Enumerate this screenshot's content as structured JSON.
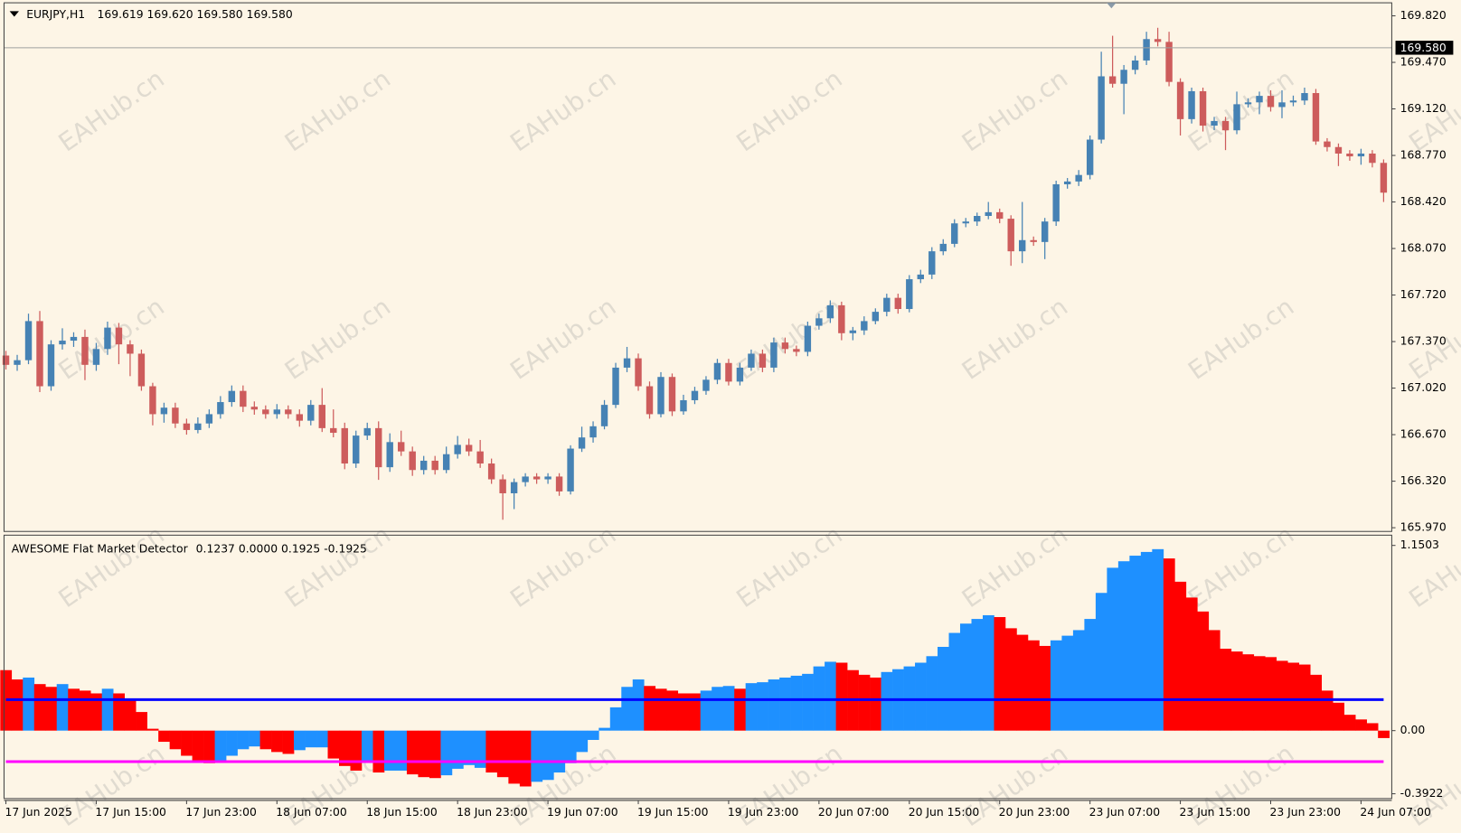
{
  "chart_data": [
    {
      "type": "candlestick",
      "title": "EURJPY,H1",
      "subtitle": "169.619 169.620 169.580 169.580",
      "watermark": "EAHub.cn",
      "up_color": "#4682b4",
      "down_color": "#cd5c5c",
      "ylim": [
        165.942,
        169.918
      ],
      "yticks": [
        {
          "value": 169.82,
          "label": "169.820"
        },
        {
          "value": 169.47,
          "label": "169.470"
        },
        {
          "value": 169.12,
          "label": "169.120"
        },
        {
          "value": 168.77,
          "label": "168.770"
        },
        {
          "value": 168.42,
          "label": "168.420"
        },
        {
          "value": 168.07,
          "label": "168.070"
        },
        {
          "value": 167.72,
          "label": "167.720"
        },
        {
          "value": 167.37,
          "label": "167.370"
        },
        {
          "value": 167.02,
          "label": "167.020"
        },
        {
          "value": 166.67,
          "label": "166.670"
        },
        {
          "value": 166.32,
          "label": "166.320"
        },
        {
          "value": 165.97,
          "label": "165.970"
        }
      ],
      "price_line": {
        "value": 169.58,
        "label": "169.580"
      },
      "open": [
        167.265,
        167.195,
        167.23,
        167.524,
        167.034,
        167.349,
        167.377,
        167.405,
        167.195,
        167.314,
        167.475,
        167.349,
        167.279,
        167.034,
        166.824,
        166.873,
        166.754,
        166.705,
        166.754,
        166.824,
        166.915,
        166.999,
        166.88,
        166.859,
        166.824,
        166.859,
        166.824,
        166.775,
        166.894,
        166.719,
        166.719,
        166.453,
        166.663,
        166.719,
        166.425,
        166.614,
        166.544,
        166.404,
        166.474,
        166.404,
        166.523,
        166.593,
        166.544,
        166.453,
        166.334,
        166.229,
        166.313,
        166.355,
        166.334,
        166.355,
        166.243,
        166.565,
        166.649,
        166.733,
        166.894,
        167.174,
        167.244,
        167.034,
        166.824,
        167.104,
        166.845,
        166.929,
        166.999,
        167.083,
        167.209,
        167.069,
        167.174,
        167.279,
        167.174,
        167.363,
        167.314,
        167.293,
        167.489,
        167.545,
        167.643,
        167.433,
        167.454,
        167.524,
        167.594,
        167.699,
        167.615,
        167.839,
        167.874,
        168.049,
        168.105,
        168.259,
        168.273,
        168.315,
        168.343,
        168.294,
        168.049,
        168.133,
        168.119,
        168.273,
        168.553,
        168.574,
        168.623,
        168.889,
        169.365,
        169.309,
        169.414,
        169.484,
        169.645,
        169.624,
        169.323,
        169.043,
        169.253,
        168.994,
        169.029,
        168.959,
        169.155,
        169.169,
        169.218,
        169.134,
        169.169,
        169.183,
        169.239,
        168.875,
        168.833,
        168.784,
        168.763,
        168.784,
        168.714
      ],
      "high": [
        167.3,
        167.27,
        167.58,
        167.6,
        167.38,
        167.47,
        167.44,
        167.46,
        167.36,
        167.52,
        167.51,
        167.38,
        167.31,
        167.06,
        166.91,
        166.91,
        166.79,
        166.8,
        166.86,
        166.96,
        167.04,
        167.04,
        166.92,
        166.89,
        166.9,
        166.89,
        166.86,
        166.93,
        167.02,
        166.86,
        166.76,
        166.7,
        166.76,
        166.77,
        166.68,
        166.7,
        166.58,
        166.51,
        166.51,
        166.58,
        166.66,
        166.64,
        166.63,
        166.49,
        166.37,
        166.34,
        166.38,
        166.38,
        166.38,
        166.38,
        166.59,
        166.73,
        166.77,
        166.93,
        167.21,
        167.33,
        167.28,
        167.07,
        167.14,
        167.13,
        166.97,
        167.03,
        167.11,
        167.24,
        167.24,
        167.21,
        167.31,
        167.31,
        167.4,
        167.4,
        167.34,
        167.52,
        167.58,
        167.68,
        167.67,
        167.48,
        167.56,
        167.62,
        167.73,
        167.73,
        167.87,
        167.91,
        168.08,
        168.14,
        168.29,
        168.3,
        168.34,
        168.42,
        168.37,
        168.32,
        168.42,
        168.16,
        168.3,
        168.58,
        168.6,
        168.66,
        168.92,
        169.55,
        169.67,
        169.45,
        169.52,
        169.7,
        169.73,
        169.7,
        169.35,
        169.28,
        169.28,
        169.06,
        169.06,
        169.25,
        169.2,
        169.25,
        169.26,
        169.26,
        169.22,
        169.28,
        169.27,
        168.9,
        168.86,
        168.81,
        168.82,
        168.81,
        168.74
      ],
      "low": [
        167.16,
        167.15,
        167.2,
        166.99,
        167.0,
        167.31,
        167.33,
        167.08,
        167.15,
        167.27,
        167.2,
        167.11,
        167.0,
        166.74,
        166.76,
        166.72,
        166.67,
        166.68,
        166.72,
        166.79,
        166.88,
        166.84,
        166.82,
        166.79,
        166.79,
        166.79,
        166.73,
        166.74,
        166.69,
        166.65,
        166.41,
        166.42,
        166.63,
        166.33,
        166.39,
        166.51,
        166.36,
        166.37,
        166.37,
        166.38,
        166.49,
        166.51,
        166.42,
        166.3,
        166.03,
        166.11,
        166.28,
        166.3,
        166.3,
        166.21,
        166.22,
        166.54,
        166.61,
        166.71,
        166.87,
        167.14,
        167.0,
        166.79,
        166.8,
        166.81,
        166.82,
        166.9,
        166.97,
        167.05,
        167.04,
        167.04,
        167.15,
        167.14,
        167.14,
        167.28,
        167.26,
        167.26,
        167.46,
        167.51,
        167.38,
        167.38,
        167.42,
        167.5,
        167.56,
        167.58,
        167.59,
        167.81,
        167.84,
        168.02,
        168.08,
        168.23,
        168.24,
        168.29,
        168.26,
        167.94,
        167.96,
        168.09,
        167.99,
        168.24,
        168.52,
        168.54,
        168.59,
        168.86,
        169.28,
        169.08,
        169.38,
        169.45,
        169.59,
        169.29,
        168.92,
        169.01,
        168.95,
        168.96,
        168.81,
        168.93,
        169.13,
        169.08,
        169.1,
        169.05,
        169.14,
        169.15,
        168.85,
        168.8,
        168.69,
        168.73,
        168.7,
        168.68,
        168.42
      ],
      "close": [
        167.195,
        167.23,
        167.524,
        167.034,
        167.349,
        167.377,
        167.405,
        167.195,
        167.314,
        167.475,
        167.349,
        167.279,
        167.034,
        166.824,
        166.873,
        166.754,
        166.705,
        166.754,
        166.824,
        166.915,
        166.999,
        166.88,
        166.859,
        166.824,
        166.859,
        166.824,
        166.775,
        166.894,
        166.719,
        166.684,
        166.453,
        166.663,
        166.719,
        166.425,
        166.614,
        166.544,
        166.404,
        166.474,
        166.404,
        166.523,
        166.593,
        166.544,
        166.453,
        166.334,
        166.229,
        166.313,
        166.355,
        166.334,
        166.355,
        166.243,
        166.565,
        166.649,
        166.733,
        166.894,
        167.174,
        167.244,
        167.034,
        166.824,
        167.104,
        166.845,
        166.929,
        166.999,
        167.083,
        167.209,
        167.069,
        167.174,
        167.279,
        167.174,
        167.363,
        167.314,
        167.293,
        167.489,
        167.545,
        167.643,
        167.433,
        167.454,
        167.524,
        167.594,
        167.699,
        167.615,
        167.839,
        167.874,
        168.049,
        168.105,
        168.259,
        168.273,
        168.315,
        168.343,
        168.294,
        168.049,
        168.133,
        168.119,
        168.273,
        168.553,
        168.574,
        168.623,
        168.889,
        169.365,
        169.309,
        169.414,
        169.484,
        169.645,
        169.624,
        169.323,
        169.043,
        169.253,
        168.994,
        169.029,
        168.959,
        169.155,
        169.169,
        169.218,
        169.134,
        169.169,
        169.183,
        169.239,
        168.875,
        168.833,
        168.784,
        168.763,
        168.784,
        168.714,
        168.49
      ]
    },
    {
      "type": "bar",
      "title": "AWESOME Flat Market Detector",
      "subtitle": "0.1237 0.0000 0.1925 -0.1925",
      "ylim": [
        -0.422,
        1.214
      ],
      "yticks": [
        1.1503,
        {
          "value": 0,
          "label": "0.00"
        },
        -0.3922
      ],
      "levels": [
        0.1925,
        -0.1925
      ],
      "level_colors": [
        "#0000ff",
        "#ff00ff"
      ],
      "categories": [
        "17 Jun 2025",
        null,
        null,
        null,
        null,
        null,
        null,
        null,
        "17 Jun 15:00",
        null,
        null,
        null,
        null,
        null,
        null,
        null,
        "17 Jun 23:00",
        null,
        null,
        null,
        null,
        null,
        null,
        null,
        "18 Jun 07:00",
        null,
        null,
        null,
        null,
        null,
        null,
        null,
        "18 Jun 15:00",
        null,
        null,
        null,
        null,
        null,
        null,
        null,
        "18 Jun 23:00",
        null,
        null,
        null,
        null,
        null,
        null,
        null,
        "19 Jun 07:00",
        null,
        null,
        null,
        null,
        null,
        null,
        null,
        "19 Jun 15:00",
        null,
        null,
        null,
        null,
        null,
        null,
        null,
        "19 Jun 23:00",
        null,
        null,
        null,
        null,
        null,
        null,
        null,
        "20 Jun 07:00",
        null,
        null,
        null,
        null,
        null,
        null,
        null,
        "20 Jun 15:00",
        null,
        null,
        null,
        null,
        null,
        null,
        null,
        "20 Jun 23:00",
        null,
        null,
        null,
        null,
        null,
        null,
        null,
        "23 Jun 07:00",
        null,
        null,
        null,
        null,
        null,
        null,
        null,
        "23 Jun 15:00",
        null,
        null,
        null,
        null,
        null,
        null,
        null,
        "23 Jun 23:00",
        null,
        null,
        null,
        null,
        null,
        null,
        null,
        "24 Jun 07:00",
        null,
        null
      ],
      "values": [
        0.3757,
        0.3179,
        0.3295,
        0.289,
        0.2717,
        0.289,
        0.2601,
        0.2485,
        0.2312,
        0.2601,
        0.2312,
        0.1907,
        0.1156,
        0.0116,
        -0.0694,
        -0.1156,
        -0.1561,
        -0.185,
        -0.2023,
        -0.1907,
        -0.1561,
        -0.1156,
        -0.0983,
        -0.1156,
        -0.1329,
        -0.1445,
        -0.1214,
        -0.104,
        -0.104,
        -0.1734,
        -0.2196,
        -0.2485,
        -0.1907,
        -0.2601,
        -0.2485,
        -0.2485,
        -0.2717,
        -0.289,
        -0.2948,
        -0.2774,
        -0.237,
        -0.2139,
        -0.2312,
        -0.2601,
        -0.289,
        -0.3295,
        -0.3468,
        -0.3179,
        -0.3063,
        -0.2601,
        -0.2023,
        -0.1329,
        -0.0578,
        0.0173,
        0.1445,
        0.2717,
        0.3179,
        0.2774,
        0.2601,
        0.2485,
        0.2312,
        0.2312,
        0.2485,
        0.2717,
        0.2774,
        0.2601,
        0.2948,
        0.3006,
        0.3179,
        0.3295,
        0.341,
        0.3526,
        0.3988,
        0.4277,
        0.4219,
        0.3757,
        0.3468,
        0.3295,
        0.3641,
        0.3815,
        0.3988,
        0.4219,
        0.4624,
        0.5202,
        0.6069,
        0.6647,
        0.6936,
        0.7167,
        0.7052,
        0.6358,
        0.5953,
        0.5607,
        0.526,
        0.5607,
        0.5896,
        0.6242,
        0.6936,
        0.8554,
        1.0115,
        1.052,
        1.0866,
        1.1098,
        1.1271,
        1.0693,
        0.9248,
        0.8265,
        0.7398,
        0.6242,
        0.5086,
        0.4913,
        0.474,
        0.4624,
        0.4566,
        0.4335,
        0.4219,
        0.4104,
        0.3468,
        0.2485,
        0.1734,
        0.0983,
        0.0694,
        0.0462,
        -0.0462
      ],
      "bar_colors": [
        "#ff0000",
        "#ff0000",
        "#1e90ff",
        "#ff0000",
        "#ff0000",
        "#1e90ff",
        "#ff0000",
        "#ff0000",
        "#ff0000",
        "#1e90ff",
        "#ff0000",
        "#ff0000",
        "#ff0000",
        "#ff0000",
        "#ff0000",
        "#ff0000",
        "#ff0000",
        "#ff0000",
        "#ff0000",
        "#1e90ff",
        "#1e90ff",
        "#1e90ff",
        "#1e90ff",
        "#ff0000",
        "#ff0000",
        "#ff0000",
        "#1e90ff",
        "#1e90ff",
        "#1e90ff",
        "#ff0000",
        "#ff0000",
        "#ff0000",
        "#1e90ff",
        "#ff0000",
        "#1e90ff",
        "#1e90ff",
        "#ff0000",
        "#ff0000",
        "#ff0000",
        "#1e90ff",
        "#1e90ff",
        "#1e90ff",
        "#1e90ff",
        "#ff0000",
        "#ff0000",
        "#ff0000",
        "#ff0000",
        "#1e90ff",
        "#1e90ff",
        "#1e90ff",
        "#1e90ff",
        "#1e90ff",
        "#1e90ff",
        "#1e90ff",
        "#1e90ff",
        "#1e90ff",
        "#1e90ff",
        "#ff0000",
        "#ff0000",
        "#ff0000",
        "#ff0000",
        "#ff0000",
        "#1e90ff",
        "#1e90ff",
        "#1e90ff",
        "#ff0000",
        "#1e90ff",
        "#1e90ff",
        "#1e90ff",
        "#1e90ff",
        "#1e90ff",
        "#1e90ff",
        "#1e90ff",
        "#1e90ff",
        "#ff0000",
        "#ff0000",
        "#ff0000",
        "#ff0000",
        "#1e90ff",
        "#1e90ff",
        "#1e90ff",
        "#1e90ff",
        "#1e90ff",
        "#1e90ff",
        "#1e90ff",
        "#1e90ff",
        "#1e90ff",
        "#1e90ff",
        "#ff0000",
        "#ff0000",
        "#ff0000",
        "#ff0000",
        "#ff0000",
        "#1e90ff",
        "#1e90ff",
        "#1e90ff",
        "#1e90ff",
        "#1e90ff",
        "#1e90ff",
        "#1e90ff",
        "#1e90ff",
        "#1e90ff",
        "#1e90ff",
        "#ff0000",
        "#ff0000",
        "#ff0000",
        "#ff0000",
        "#ff0000",
        "#ff0000",
        "#ff0000",
        "#ff0000",
        "#ff0000",
        "#ff0000",
        "#ff0000",
        "#ff0000",
        "#ff0000",
        "#ff0000",
        "#ff0000",
        "#ff0000",
        "#ff0000",
        "#ff0000",
        "#ff0000",
        "#ff0000"
      ]
    }
  ]
}
